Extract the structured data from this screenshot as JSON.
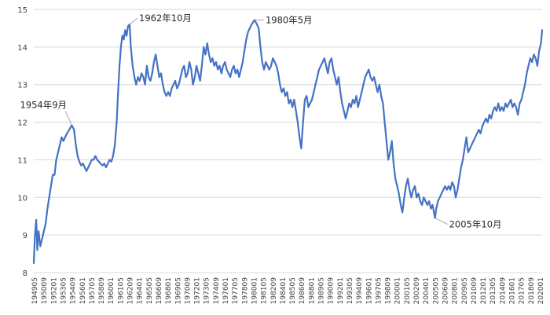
{
  "chart_data": {
    "type": "line",
    "title": "",
    "xlabel": "",
    "ylabel": "",
    "ylim": [
      8,
      15
    ],
    "yticks": [
      8,
      9,
      10,
      11,
      12,
      13,
      14,
      15
    ],
    "grid": true,
    "legend": "none",
    "color": "#4472c4",
    "xtick_labels": [
      "194905",
      "195009",
      "195201",
      "195305",
      "195409",
      "195601",
      "195705",
      "195809",
      "196001",
      "196105",
      "196209",
      "196401",
      "196505",
      "196609",
      "196801",
      "196905",
      "197009",
      "197201",
      "197305",
      "197409",
      "197601",
      "197705",
      "197809",
      "198001",
      "198105",
      "198209",
      "198401",
      "198505",
      "198609",
      "198801",
      "198905",
      "199009",
      "199201",
      "199305",
      "199409",
      "199601",
      "199705",
      "199809",
      "200001",
      "200105",
      "200209",
      "200401",
      "200505",
      "200609",
      "200801",
      "200905",
      "201009",
      "201201",
      "201305",
      "201409",
      "201601",
      "201705",
      "201809",
      "202001"
    ],
    "series": [
      {
        "name": "series1",
        "points": [
          [
            1949.33,
            8.25
          ],
          [
            1949.5,
            9.0
          ],
          [
            1949.67,
            9.4
          ],
          [
            1949.83,
            8.6
          ],
          [
            1950.0,
            9.1
          ],
          [
            1950.25,
            8.7
          ],
          [
            1950.5,
            8.9
          ],
          [
            1950.75,
            9.1
          ],
          [
            1951.0,
            9.3
          ],
          [
            1951.25,
            9.7
          ],
          [
            1951.5,
            10.0
          ],
          [
            1951.75,
            10.3
          ],
          [
            1952.0,
            10.6
          ],
          [
            1952.25,
            10.6
          ],
          [
            1952.5,
            11.0
          ],
          [
            1952.75,
            11.2
          ],
          [
            1953.0,
            11.4
          ],
          [
            1953.25,
            11.6
          ],
          [
            1953.5,
            11.5
          ],
          [
            1953.75,
            11.6
          ],
          [
            1954.0,
            11.7
          ],
          [
            1954.33,
            11.8
          ],
          [
            1954.67,
            11.92
          ],
          [
            1955.0,
            11.8
          ],
          [
            1955.25,
            11.4
          ],
          [
            1955.5,
            11.1
          ],
          [
            1955.75,
            10.95
          ],
          [
            1956.0,
            10.85
          ],
          [
            1956.25,
            10.9
          ],
          [
            1956.5,
            10.8
          ],
          [
            1956.75,
            10.7
          ],
          [
            1957.0,
            10.8
          ],
          [
            1957.25,
            10.9
          ],
          [
            1957.5,
            11.0
          ],
          [
            1957.75,
            11.0
          ],
          [
            1958.0,
            11.1
          ],
          [
            1958.25,
            11.0
          ],
          [
            1958.5,
            10.95
          ],
          [
            1958.75,
            10.9
          ],
          [
            1959.0,
            10.85
          ],
          [
            1959.25,
            10.9
          ],
          [
            1959.5,
            10.8
          ],
          [
            1959.75,
            10.9
          ],
          [
            1960.0,
            11.0
          ],
          [
            1960.25,
            10.95
          ],
          [
            1960.5,
            11.1
          ],
          [
            1960.75,
            11.4
          ],
          [
            1961.0,
            12.0
          ],
          [
            1961.2,
            12.8
          ],
          [
            1961.4,
            13.5
          ],
          [
            1961.6,
            14.0
          ],
          [
            1961.8,
            14.3
          ],
          [
            1962.0,
            14.2
          ],
          [
            1962.2,
            14.45
          ],
          [
            1962.4,
            14.3
          ],
          [
            1962.6,
            14.55
          ],
          [
            1962.83,
            14.6
          ],
          [
            1963.0,
            14.0
          ],
          [
            1963.25,
            13.5
          ],
          [
            1963.5,
            13.2
          ],
          [
            1963.75,
            13.0
          ],
          [
            1964.0,
            13.2
          ],
          [
            1964.25,
            13.1
          ],
          [
            1964.5,
            13.3
          ],
          [
            1964.75,
            13.2
          ],
          [
            1965.0,
            13.0
          ],
          [
            1965.25,
            13.5
          ],
          [
            1965.5,
            13.2
          ],
          [
            1965.75,
            13.1
          ],
          [
            1966.0,
            13.3
          ],
          [
            1966.25,
            13.6
          ],
          [
            1966.5,
            13.8
          ],
          [
            1966.75,
            13.5
          ],
          [
            1967.0,
            13.2
          ],
          [
            1967.25,
            13.3
          ],
          [
            1967.5,
            13.0
          ],
          [
            1967.75,
            12.8
          ],
          [
            1968.0,
            12.7
          ],
          [
            1968.25,
            12.8
          ],
          [
            1968.5,
            12.7
          ],
          [
            1968.75,
            12.9
          ],
          [
            1969.0,
            13.0
          ],
          [
            1969.25,
            13.1
          ],
          [
            1969.5,
            12.9
          ],
          [
            1969.75,
            13.0
          ],
          [
            1970.0,
            13.2
          ],
          [
            1970.25,
            13.4
          ],
          [
            1970.5,
            13.5
          ],
          [
            1970.75,
            13.2
          ],
          [
            1971.0,
            13.3
          ],
          [
            1971.25,
            13.6
          ],
          [
            1971.5,
            13.4
          ],
          [
            1971.75,
            13.0
          ],
          [
            1972.0,
            13.2
          ],
          [
            1972.25,
            13.5
          ],
          [
            1972.5,
            13.3
          ],
          [
            1972.75,
            13.1
          ],
          [
            1973.0,
            13.5
          ],
          [
            1973.25,
            14.0
          ],
          [
            1973.5,
            13.8
          ],
          [
            1973.75,
            14.1
          ],
          [
            1974.0,
            13.8
          ],
          [
            1974.25,
            13.6
          ],
          [
            1974.5,
            13.7
          ],
          [
            1974.75,
            13.5
          ],
          [
            1975.0,
            13.6
          ],
          [
            1975.25,
            13.4
          ],
          [
            1975.5,
            13.5
          ],
          [
            1975.75,
            13.3
          ],
          [
            1976.0,
            13.5
          ],
          [
            1976.25,
            13.6
          ],
          [
            1976.5,
            13.4
          ],
          [
            1976.75,
            13.3
          ],
          [
            1977.0,
            13.2
          ],
          [
            1977.25,
            13.4
          ],
          [
            1977.5,
            13.5
          ],
          [
            1977.75,
            13.3
          ],
          [
            1978.0,
            13.4
          ],
          [
            1978.25,
            13.2
          ],
          [
            1978.5,
            13.4
          ],
          [
            1978.75,
            13.6
          ],
          [
            1979.0,
            13.9
          ],
          [
            1979.25,
            14.2
          ],
          [
            1979.5,
            14.4
          ],
          [
            1979.75,
            14.5
          ],
          [
            1980.0,
            14.6
          ],
          [
            1980.42,
            14.72
          ],
          [
            1980.75,
            14.6
          ],
          [
            1981.0,
            14.5
          ],
          [
            1981.25,
            14.0
          ],
          [
            1981.5,
            13.6
          ],
          [
            1981.75,
            13.4
          ],
          [
            1982.0,
            13.6
          ],
          [
            1982.25,
            13.5
          ],
          [
            1982.5,
            13.4
          ],
          [
            1982.75,
            13.5
          ],
          [
            1983.0,
            13.7
          ],
          [
            1983.25,
            13.6
          ],
          [
            1983.5,
            13.5
          ],
          [
            1983.75,
            13.3
          ],
          [
            1984.0,
            13.0
          ],
          [
            1984.25,
            12.8
          ],
          [
            1984.5,
            12.9
          ],
          [
            1984.75,
            12.7
          ],
          [
            1985.0,
            12.8
          ],
          [
            1985.25,
            12.5
          ],
          [
            1985.5,
            12.6
          ],
          [
            1985.75,
            12.4
          ],
          [
            1986.0,
            12.6
          ],
          [
            1986.25,
            12.3
          ],
          [
            1986.5,
            12.0
          ],
          [
            1986.75,
            11.6
          ],
          [
            1987.0,
            11.3
          ],
          [
            1987.25,
            12.0
          ],
          [
            1987.5,
            12.6
          ],
          [
            1987.75,
            12.7
          ],
          [
            1988.0,
            12.4
          ],
          [
            1988.25,
            12.5
          ],
          [
            1988.5,
            12.6
          ],
          [
            1988.75,
            12.8
          ],
          [
            1989.0,
            13.0
          ],
          [
            1989.25,
            13.2
          ],
          [
            1989.5,
            13.4
          ],
          [
            1989.75,
            13.5
          ],
          [
            1990.0,
            13.6
          ],
          [
            1990.25,
            13.7
          ],
          [
            1990.5,
            13.5
          ],
          [
            1990.75,
            13.3
          ],
          [
            1991.0,
            13.6
          ],
          [
            1991.25,
            13.7
          ],
          [
            1991.5,
            13.4
          ],
          [
            1991.75,
            13.2
          ],
          [
            1992.0,
            13.0
          ],
          [
            1992.25,
            13.2
          ],
          [
            1992.5,
            12.8
          ],
          [
            1992.75,
            12.5
          ],
          [
            1993.0,
            12.3
          ],
          [
            1993.25,
            12.1
          ],
          [
            1993.5,
            12.3
          ],
          [
            1993.75,
            12.5
          ],
          [
            1994.0,
            12.4
          ],
          [
            1994.25,
            12.6
          ],
          [
            1994.5,
            12.5
          ],
          [
            1994.75,
            12.7
          ],
          [
            1995.0,
            12.4
          ],
          [
            1995.25,
            12.6
          ],
          [
            1995.5,
            12.8
          ],
          [
            1995.75,
            13.0
          ],
          [
            1996.0,
            13.2
          ],
          [
            1996.25,
            13.3
          ],
          [
            1996.5,
            13.4
          ],
          [
            1996.75,
            13.2
          ],
          [
            1997.0,
            13.1
          ],
          [
            1997.25,
            13.2
          ],
          [
            1997.5,
            13.0
          ],
          [
            1997.75,
            12.8
          ],
          [
            1998.0,
            13.0
          ],
          [
            1998.25,
            12.7
          ],
          [
            1998.5,
            12.5
          ],
          [
            1998.75,
            12.0
          ],
          [
            1999.0,
            11.5
          ],
          [
            1999.25,
            11.0
          ],
          [
            1999.5,
            11.2
          ],
          [
            1999.75,
            11.5
          ],
          [
            2000.0,
            10.9
          ],
          [
            2000.25,
            10.5
          ],
          [
            2000.5,
            10.3
          ],
          [
            2000.75,
            10.1
          ],
          [
            2001.0,
            9.8
          ],
          [
            2001.25,
            9.6
          ],
          [
            2001.5,
            10.0
          ],
          [
            2001.75,
            10.3
          ],
          [
            2002.0,
            10.5
          ],
          [
            2002.25,
            10.2
          ],
          [
            2002.5,
            10.0
          ],
          [
            2002.75,
            10.2
          ],
          [
            2003.0,
            10.3
          ],
          [
            2003.25,
            10.0
          ],
          [
            2003.5,
            10.1
          ],
          [
            2003.75,
            9.9
          ],
          [
            2004.0,
            9.8
          ],
          [
            2004.25,
            10.0
          ],
          [
            2004.5,
            9.9
          ],
          [
            2004.75,
            9.8
          ],
          [
            2005.0,
            9.9
          ],
          [
            2005.25,
            9.7
          ],
          [
            2005.5,
            9.8
          ],
          [
            2005.83,
            9.45
          ],
          [
            2006.0,
            9.7
          ],
          [
            2006.25,
            9.9
          ],
          [
            2006.5,
            10.0
          ],
          [
            2006.75,
            10.1
          ],
          [
            2007.0,
            10.2
          ],
          [
            2007.25,
            10.3
          ],
          [
            2007.5,
            10.2
          ],
          [
            2007.75,
            10.3
          ],
          [
            2008.0,
            10.2
          ],
          [
            2008.25,
            10.4
          ],
          [
            2008.5,
            10.3
          ],
          [
            2008.75,
            10.0
          ],
          [
            2009.0,
            10.2
          ],
          [
            2009.25,
            10.5
          ],
          [
            2009.5,
            10.8
          ],
          [
            2009.75,
            11.0
          ],
          [
            2010.0,
            11.3
          ],
          [
            2010.25,
            11.6
          ],
          [
            2010.5,
            11.2
          ],
          [
            2010.75,
            11.3
          ],
          [
            2011.0,
            11.4
          ],
          [
            2011.25,
            11.5
          ],
          [
            2011.5,
            11.6
          ],
          [
            2011.75,
            11.7
          ],
          [
            2012.0,
            11.8
          ],
          [
            2012.25,
            11.7
          ],
          [
            2012.5,
            11.9
          ],
          [
            2012.75,
            12.0
          ],
          [
            2013.0,
            12.1
          ],
          [
            2013.25,
            12.0
          ],
          [
            2013.5,
            12.2
          ],
          [
            2013.75,
            12.1
          ],
          [
            2014.0,
            12.3
          ],
          [
            2014.25,
            12.4
          ],
          [
            2014.5,
            12.3
          ],
          [
            2014.75,
            12.5
          ],
          [
            2015.0,
            12.3
          ],
          [
            2015.25,
            12.4
          ],
          [
            2015.5,
            12.3
          ],
          [
            2015.75,
            12.5
          ],
          [
            2016.0,
            12.4
          ],
          [
            2016.25,
            12.5
          ],
          [
            2016.5,
            12.6
          ],
          [
            2016.75,
            12.4
          ],
          [
            2017.0,
            12.5
          ],
          [
            2017.25,
            12.4
          ],
          [
            2017.5,
            12.2
          ],
          [
            2017.75,
            12.5
          ],
          [
            2018.0,
            12.6
          ],
          [
            2018.25,
            12.8
          ],
          [
            2018.5,
            13.0
          ],
          [
            2018.75,
            13.3
          ],
          [
            2019.0,
            13.5
          ],
          [
            2019.25,
            13.7
          ],
          [
            2019.5,
            13.6
          ],
          [
            2019.75,
            13.8
          ],
          [
            2020.0,
            13.7
          ],
          [
            2020.25,
            13.5
          ],
          [
            2020.5,
            13.9
          ],
          [
            2020.75,
            14.1
          ],
          [
            2020.92,
            14.45
          ]
        ]
      }
    ],
    "annotations": [
      {
        "text": "1954年9月",
        "x": 1954.67,
        "y": 11.92,
        "label_side": "above-left"
      },
      {
        "text": "1962年10月",
        "x": 1962.83,
        "y": 14.6,
        "label_side": "above-right"
      },
      {
        "text": "1980年5月",
        "x": 1980.42,
        "y": 14.72,
        "label_side": "right"
      },
      {
        "text": "2005年10月",
        "x": 2005.83,
        "y": 9.45,
        "label_side": "below-right"
      }
    ]
  }
}
